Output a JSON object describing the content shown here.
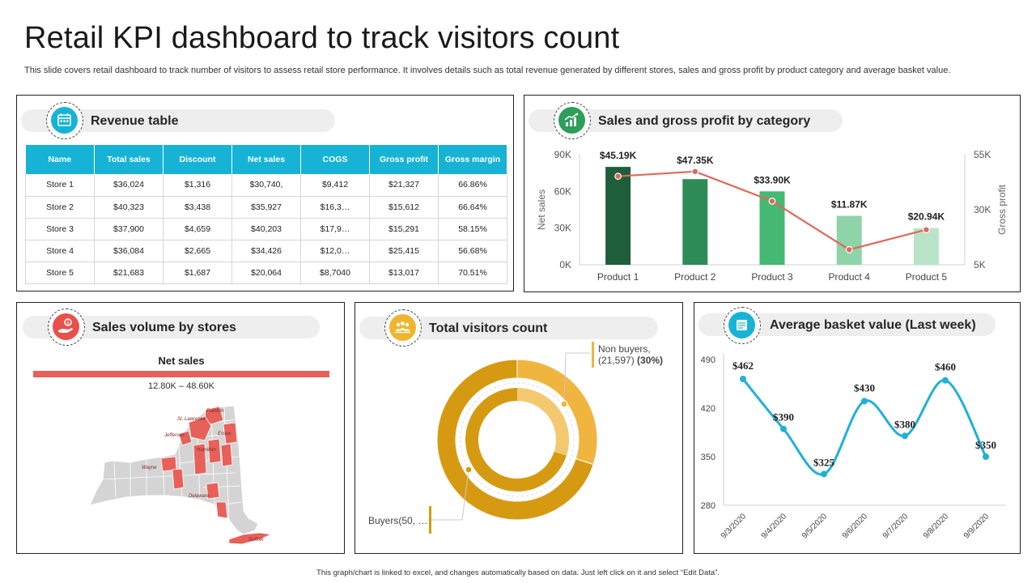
{
  "header": {
    "title": "Retail KPI dashboard to track visitors count",
    "subtitle": "This slide covers retail dashboard to track number of visitors to assess retail store performance. It involves details such as total revenue generated by different stores, sales and gross profit by product category and average basket value.",
    "footer": "This graph/chart is linked to excel, and changes automatically based on data. Just left click on it and select “Edit Data”."
  },
  "panels": {
    "revenue": {
      "title": "Revenue table",
      "icon": "calendar-icon",
      "color": "#17b3d6"
    },
    "sales_profit": {
      "title": "Sales and gross profit by category",
      "icon": "growth-chart-icon",
      "color": "#2e9e5b"
    },
    "sales_volume": {
      "title": "Sales volume by stores",
      "icon": "hand-money-icon",
      "color": "#e8514a"
    },
    "visitors": {
      "title": "Total visitors count",
      "icon": "people-icon",
      "color": "#f0b52e"
    },
    "basket": {
      "title": "Average basket value (Last week)",
      "icon": "basket-icon",
      "color": "#17b3d6"
    }
  },
  "revenue_table": {
    "headers": [
      "Name",
      "Total sales",
      "Discount",
      "Net sales",
      "COGS",
      "Gross profit",
      "Gross margin"
    ],
    "rows": [
      [
        "Store 1",
        "$36,024",
        "$1,316",
        "$30,740,",
        "$9,412",
        "$21,327",
        "66.86%"
      ],
      [
        "Store 2",
        "$40,323",
        "$3,438",
        "$35,927",
        "$16,3…",
        "$15,612",
        "66.64%"
      ],
      [
        "Store 3",
        "$37,900",
        "$4,659",
        "$40,203",
        "$17,9…",
        "$15,291",
        "58.15%"
      ],
      [
        "Store 4",
        "$36,084",
        "$2,665",
        "$34,426",
        "$12,0…",
        "$25,415",
        "56.68%"
      ],
      [
        "Store 5",
        "$21,683",
        "$1,687",
        "$20,064",
        "$8,7040",
        "$13,017",
        "70.51%"
      ]
    ]
  },
  "map": {
    "legend_title": "Net sales",
    "legend_range": "12.80K – 48.60K",
    "legend_color": "#e8605a",
    "region_labels": [
      "Franklin",
      "St. Lawrence",
      "Essex",
      "Jefferson",
      "Hamilton",
      "Wayne",
      "Delaware",
      "Suffolk"
    ]
  },
  "chart_data": [
    {
      "type": "bar",
      "categories": [
        "Product 1",
        "Product 2",
        "Product 3",
        "Product 4",
        "Product 5"
      ],
      "series": [
        {
          "name": "Net sales",
          "type": "bar",
          "axis": "left",
          "values": [
            80,
            70,
            60,
            40,
            30
          ],
          "colors": [
            "#1e5e3a",
            "#2e8b57",
            "#45b874",
            "#8fd4a8",
            "#b9e4c8"
          ]
        },
        {
          "name": "Gross profit",
          "type": "line",
          "axis": "right",
          "values": [
            45.19,
            47.35,
            33.9,
            11.87,
            20.94
          ],
          "labels": [
            "$45.19K",
            "$47.35K",
            "$33.90K",
            "$11.87K",
            "$20.94K"
          ],
          "color": "#e0685a"
        }
      ],
      "ylabel": "Net sales",
      "y2label": "Gross profit",
      "yticks": [
        "0K",
        "30K",
        "60K",
        "90K"
      ],
      "y2ticks": [
        "5K",
        "30K",
        "55K"
      ],
      "ylim": [
        0,
        90
      ],
      "y2lim": [
        5,
        55
      ]
    },
    {
      "type": "pie",
      "variant": "donut",
      "series": [
        {
          "name": "Non buyers",
          "value": 21597,
          "percent": 30,
          "label": "Non buyers,",
          "detail": "(21,597)",
          "pct_label": "(30%)",
          "color": "#f0b53e"
        },
        {
          "name": "Buyers",
          "value": 50000,
          "percent": 70,
          "label": "Buyers(50, …",
          "color": "#d69a12"
        }
      ]
    },
    {
      "type": "line",
      "x": [
        "9/3/2020",
        "9/4/2020",
        "9/5/2020",
        "9/6/2020",
        "9/7/2020",
        "9/8/2020",
        "9/9/2020"
      ],
      "values": [
        462,
        390,
        325,
        430,
        380,
        460,
        350
      ],
      "labels": [
        "$462",
        "$390",
        "$325",
        "$430",
        "$380",
        "$460",
        "$350"
      ],
      "yticks": [
        "280",
        "350",
        "420",
        "490"
      ],
      "ylim": [
        280,
        490
      ],
      "color": "#1fb1d6"
    }
  ]
}
